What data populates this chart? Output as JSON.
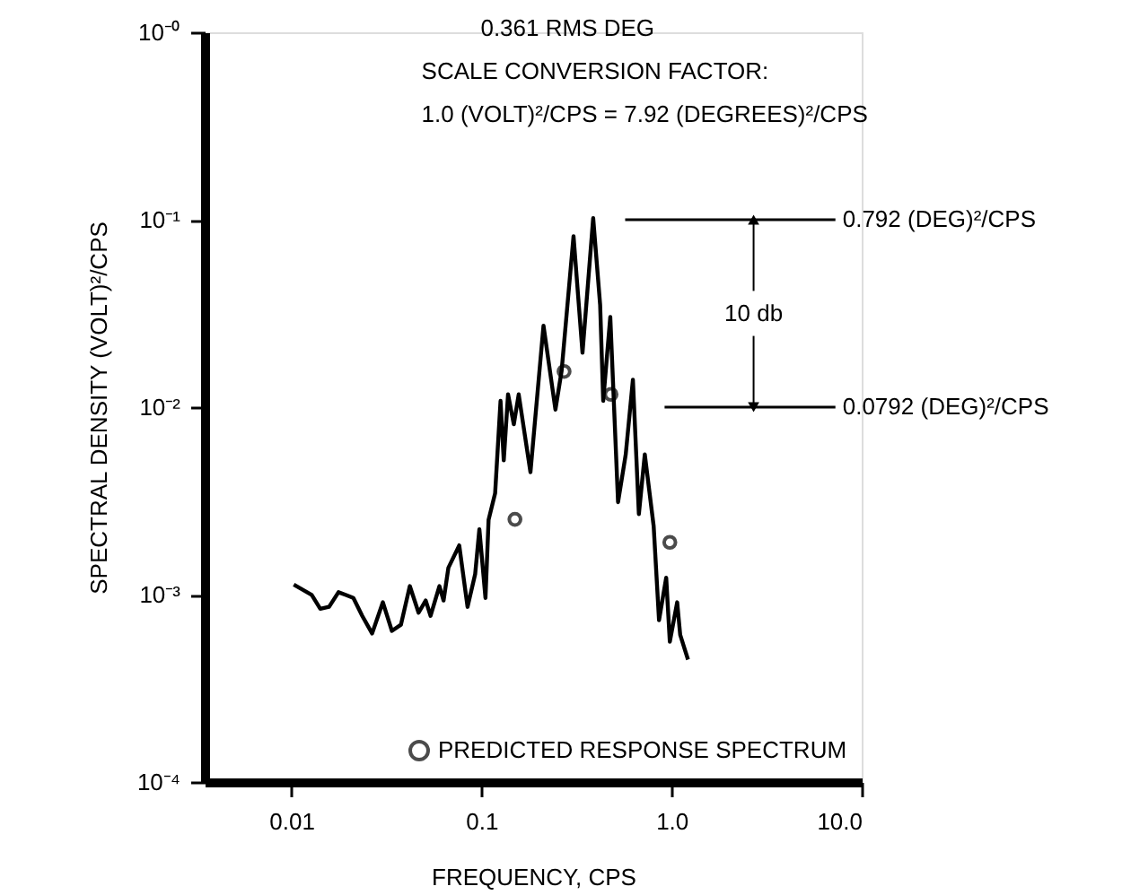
{
  "chart_data": {
    "type": "line",
    "title": "0.361 RMS DEG",
    "subtitle": [
      "SCALE CONVERSION FACTOR:",
      "1.0 (VOLT)²/CPS = 7.92 (DEGREES)²/CPS"
    ],
    "xlabel": "FREQUENCY, CPS",
    "ylabel": "SPECTRAL DENSITY (VOLT)²/CPS",
    "log": "xy",
    "grid": false,
    "legend": "bottom right",
    "xlim": [
      0.0035,
      10
    ],
    "xticks": [
      0.01,
      0.1,
      {
        "value": 1,
        "label": "1.0"
      },
      {
        "value": 10,
        "label": "10.0"
      }
    ],
    "ylim": [
      0.0001,
      1
    ],
    "yticks": [
      {
        "value": 0.0001,
        "label": "10⁻⁴"
      },
      {
        "value": 0.001,
        "label": "10⁻³"
      },
      {
        "value": 0.01,
        "label": "10⁻²"
      },
      {
        "value": 0.1,
        "label": "10⁻¹"
      },
      {
        "value": 1,
        "label": "10⁻⁰"
      }
    ],
    "series": [
      {
        "color": "#000000",
        "marker": "none",
        "line_style": "solid",
        "x": [
          0.0103,
          0.0128,
          0.0142,
          0.0158,
          0.0177,
          0.0194,
          0.0212,
          0.0236,
          0.0266,
          0.0303,
          0.0338,
          0.0377,
          0.042,
          0.0467,
          0.0509,
          0.054,
          0.0601,
          0.0632,
          0.067,
          0.0764,
          0.0845,
          0.0927,
          0.0975,
          0.105,
          0.109,
          0.118,
          0.126,
          0.131,
          0.138,
          0.148,
          0.157,
          0.181,
          0.212,
          0.245,
          0.264,
          0.305,
          0.34,
          0.387,
          0.421,
          0.437,
          0.476,
          0.523,
          0.574,
          0.626,
          0.673,
          0.723,
          0.805,
          0.859,
          0.937,
          0.979,
          1.07,
          1.11,
          1.22
        ],
        "values": [
          0.00113,
          0.000995,
          0.00084,
          0.00086,
          0.00103,
          0.000995,
          0.00096,
          0.00077,
          0.00062,
          0.00091,
          0.00064,
          0.00069,
          0.00111,
          0.0008,
          0.00093,
          0.00077,
          0.00111,
          0.00093,
          0.00139,
          0.00183,
          0.00086,
          0.00129,
          0.00223,
          0.00096,
          0.0025,
          0.00347,
          0.0108,
          0.0052,
          0.0117,
          0.0081,
          0.0117,
          0.0045,
          0.0272,
          0.0097,
          0.0156,
          0.0817,
          0.0195,
          0.102,
          0.0351,
          0.0108,
          0.0303,
          0.00311,
          0.0056,
          0.014,
          0.00269,
          0.0056,
          0.00232,
          0.00073,
          0.00123,
          0.00056,
          0.00091,
          0.00061,
          0.00045
        ]
      },
      {
        "type": "scatter",
        "name": "PREDICTED RESPONSE SPECTRUM",
        "color": "#000000",
        "marker": "circle",
        "x": [
          0.15,
          0.272,
          0.48,
          0.979
        ],
        "values": [
          0.00252,
          0.0155,
          0.0117,
          0.0019
        ]
      }
    ],
    "ref_lines": [
      {
        "axis": "y",
        "value": 0.1,
        "label": "0.792 (DEG)²/CPS"
      },
      {
        "axis": "y",
        "value": 0.01,
        "label": "0.0792 (DEG)²/CPS"
      }
    ],
    "annotations": [
      {
        "text": "10 db",
        "x": 2.7,
        "y": 0.1
      }
    ]
  }
}
